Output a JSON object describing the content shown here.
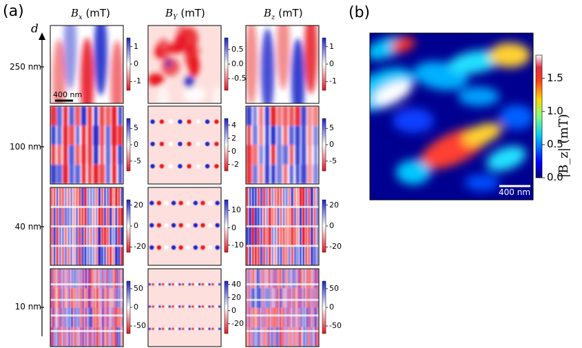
{
  "panel_a_label": "(a)",
  "panel_b_label": "(b)",
  "column_titles": [
    {
      "sym": "B",
      "sub": "x",
      "unit": "(mT)"
    },
    {
      "sym": "B",
      "sub": "Y",
      "unit": "(mT)"
    },
    {
      "sym": "B",
      "sub": "z",
      "unit": "(mT)"
    }
  ],
  "d_axis_label": "d",
  "row_labels": [
    "250 nm",
    "100 nm",
    "40 nm",
    "10 nm"
  ],
  "scalebar_a": "400 nm",
  "scalebar_b": "400 nm",
  "colorbar_b_title": "|B_z| (mT)",
  "chart_data": [
    {
      "type": "heatmap",
      "title": "(a)",
      "colormap": "blue-white-red",
      "columns": [
        "Bx (mT)",
        "By (mT)",
        "Bz (mT)"
      ],
      "rows": [
        "250 nm",
        "100 nm",
        "40 nm",
        "10 nm"
      ],
      "colorbar_ticks": [
        [
          [
            "1",
            "0",
            "-1"
          ],
          [
            "0.5",
            "0.0",
            "-0.5"
          ],
          [
            "1",
            "0",
            "-1"
          ]
        ],
        [
          [
            "5",
            "0",
            "-5"
          ],
          [
            "4",
            "2",
            "0",
            "-2"
          ],
          [
            "5",
            "0",
            "-5"
          ]
        ],
        [
          [
            "20",
            "0",
            "-20"
          ],
          [
            "10",
            "0",
            "-10"
          ],
          [
            "20",
            "0",
            "-20"
          ]
        ],
        [
          [
            "50",
            "0",
            "-50"
          ],
          [
            "40",
            "20",
            "0",
            "-20"
          ],
          [
            "50",
            "0",
            "-50"
          ]
        ]
      ],
      "colorbar_ranges": [
        [
          [
            -1.5,
            1.5
          ],
          [
            -0.9,
            0.9
          ],
          [
            -1.5,
            1.5
          ]
        ],
        [
          [
            -8,
            8
          ],
          [
            -3,
            5
          ],
          [
            -8,
            8
          ]
        ],
        [
          [
            -25,
            25
          ],
          [
            -14,
            16
          ],
          [
            -25,
            25
          ]
        ],
        [
          [
            -70,
            70
          ],
          [
            -35,
            45
          ],
          [
            -70,
            70
          ]
        ]
      ]
    },
    {
      "type": "heatmap",
      "title": "(b)",
      "colormap": "jet",
      "colorbar_title": "|B_z| (mT)",
      "colorbar_ticks": [
        "1.5",
        "1.0",
        "0.5",
        "0.0"
      ],
      "colorbar_range": [
        0.0,
        1.85
      ]
    }
  ]
}
